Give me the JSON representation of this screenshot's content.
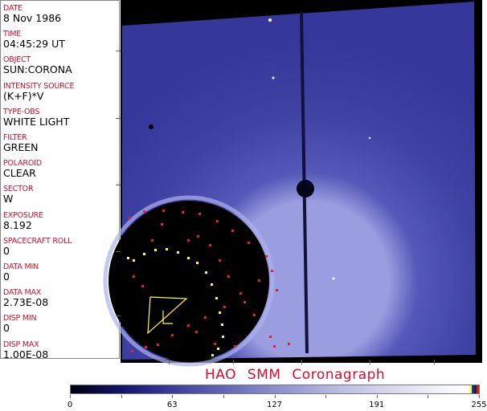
{
  "info_panel": {
    "fields": [
      {
        "label": "DATE",
        "value": "8 Nov 1986"
      },
      {
        "label": "TIME",
        "value": "04:45:29 UT"
      },
      {
        "label": "OBJECT",
        "value": "SUN:CORONA"
      },
      {
        "label": "INTENSITY SOURCE",
        "value": "(K+F)*V"
      },
      {
        "label": "TYPE-OBS",
        "value": "WHITE LIGHT"
      },
      {
        "label": "FILTER",
        "value": "GREEN"
      },
      {
        "label": "POLAROID",
        "value": "CLEAR"
      },
      {
        "label": "SECTOR",
        "value": "W"
      },
      {
        "label": "EXPOSURE",
        "value": "8.192"
      },
      {
        "label": "SPACECRAFT ROLL",
        "value": "0"
      },
      {
        "label": "DATA MIN",
        "value": "0"
      },
      {
        "label": "DATA MAX",
        "value": "2.73E-08"
      },
      {
        "label": "DISP MIN",
        "value": "0"
      },
      {
        "label": "DISP MAX",
        "value": "1.00E-08"
      }
    ]
  },
  "title": "HAO  SMM Coronagraph",
  "colorbar": {
    "min": 0,
    "max": 255,
    "tick_labels": [
      "0",
      "63",
      "127",
      "191",
      "255"
    ],
    "end_colors": [
      "#ffff40",
      "#1030c0",
      "#202020",
      "#d02020"
    ]
  },
  "colors": {
    "label": "#c8102e",
    "image_blue": "#3b3d9e",
    "occulter": "#000000",
    "marker_red": "#e0203a",
    "marker_yellow": "#ffff30"
  }
}
